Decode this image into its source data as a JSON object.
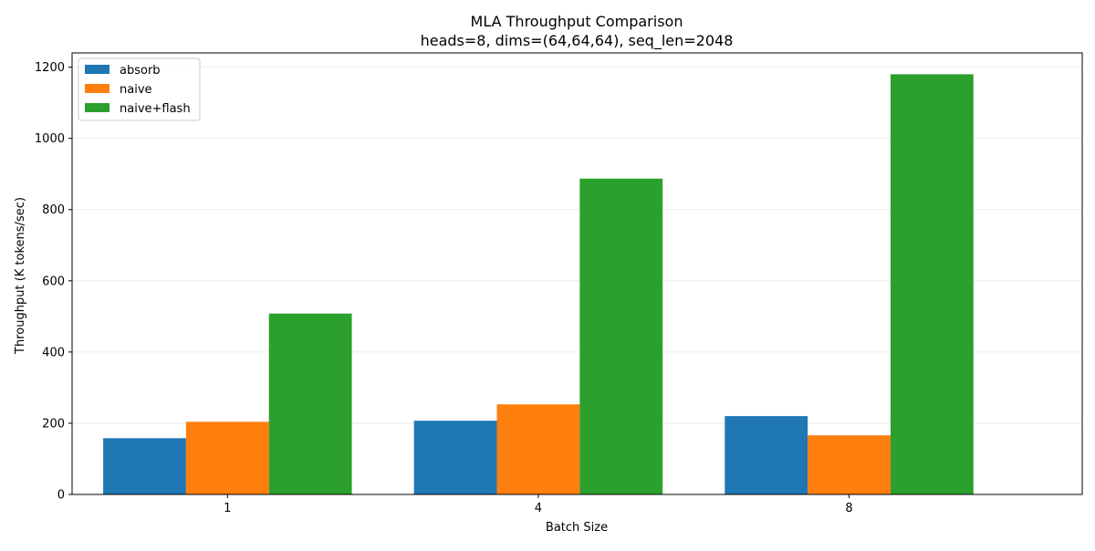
{
  "chart_data": {
    "type": "bar",
    "title": "MLA Throughput Comparison",
    "subtitle": "heads=8, dims=(64,64,64), seq_len=2048",
    "xlabel": "Batch Size",
    "ylabel": "Throughput (K tokens/sec)",
    "categories": [
      "1",
      "4",
      "8"
    ],
    "ylim": [
      0,
      1240
    ],
    "yticks": [
      0,
      200,
      400,
      600,
      800,
      1000,
      1200
    ],
    "grid": "y",
    "legend_position": "top-left",
    "series": [
      {
        "name": "absorb",
        "color": "#1f77b4",
        "values": [
          158,
          207,
          220
        ]
      },
      {
        "name": "naive",
        "color": "#ff7f0e",
        "values": [
          204,
          253,
          166
        ]
      },
      {
        "name": "naive+flash",
        "color": "#2ca02c",
        "values": [
          508,
          887,
          1180
        ]
      }
    ]
  }
}
